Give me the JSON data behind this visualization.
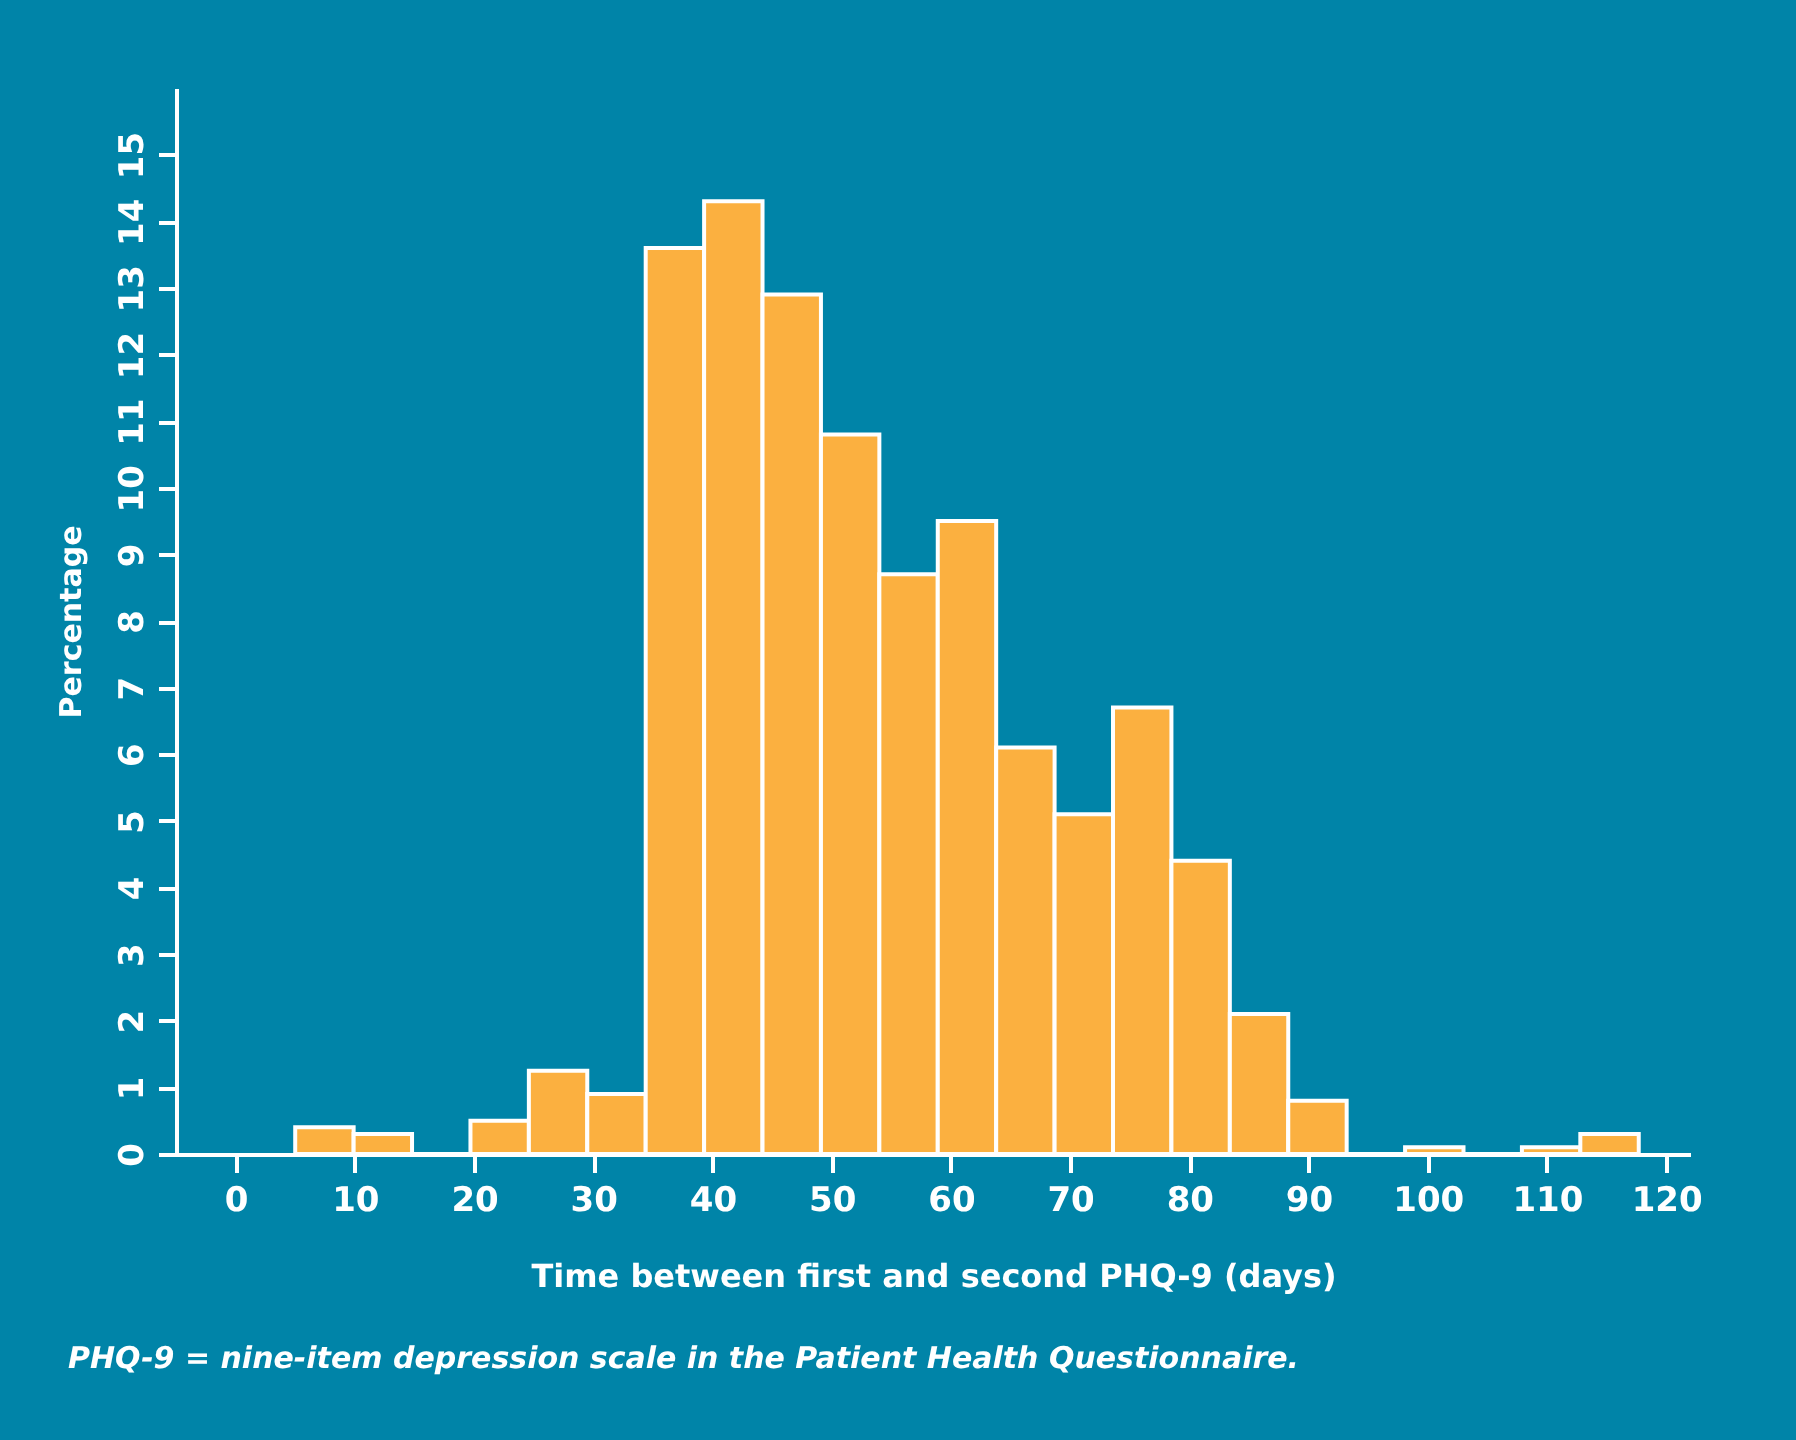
{
  "chart_data": {
    "type": "histogram",
    "xlabel": "Time between first and second PHQ-9 (days)",
    "ylabel": "Percentage",
    "annotations": [
      "PHQ-9 = nine-item depression scale in the Patient Health Questionnaire."
    ],
    "bins": [
      5,
      9.9,
      14.8,
      19.7,
      24.6,
      29.5,
      34.4,
      39.3,
      44.2,
      49.1,
      54,
      58.9,
      63.8,
      68.7,
      73.6,
      78.5,
      83.4,
      88.3,
      93.2,
      98.1,
      103,
      107.9,
      112.8,
      117.7
    ],
    "values": [
      0.4,
      0.3,
      0,
      0.5,
      1.25,
      0.9,
      13.6,
      14.3,
      12.9,
      10.8,
      8.7,
      9.5,
      6.1,
      5.1,
      6.7,
      4.4,
      2.1,
      0.8,
      0,
      0.1,
      0,
      0.1,
      0.3
    ],
    "color": "#fbb040",
    "xlim": [
      -5,
      122
    ],
    "xticks": [
      0,
      10,
      20,
      30,
      40,
      50,
      60,
      70,
      80,
      90,
      100,
      110,
      120
    ],
    "ylim": [
      0,
      16
    ],
    "yticks": [
      0,
      1,
      2,
      3,
      4,
      5,
      6,
      7,
      8,
      9,
      10,
      11,
      12,
      13,
      14,
      15
    ],
    "grid": false,
    "legend": false
  }
}
